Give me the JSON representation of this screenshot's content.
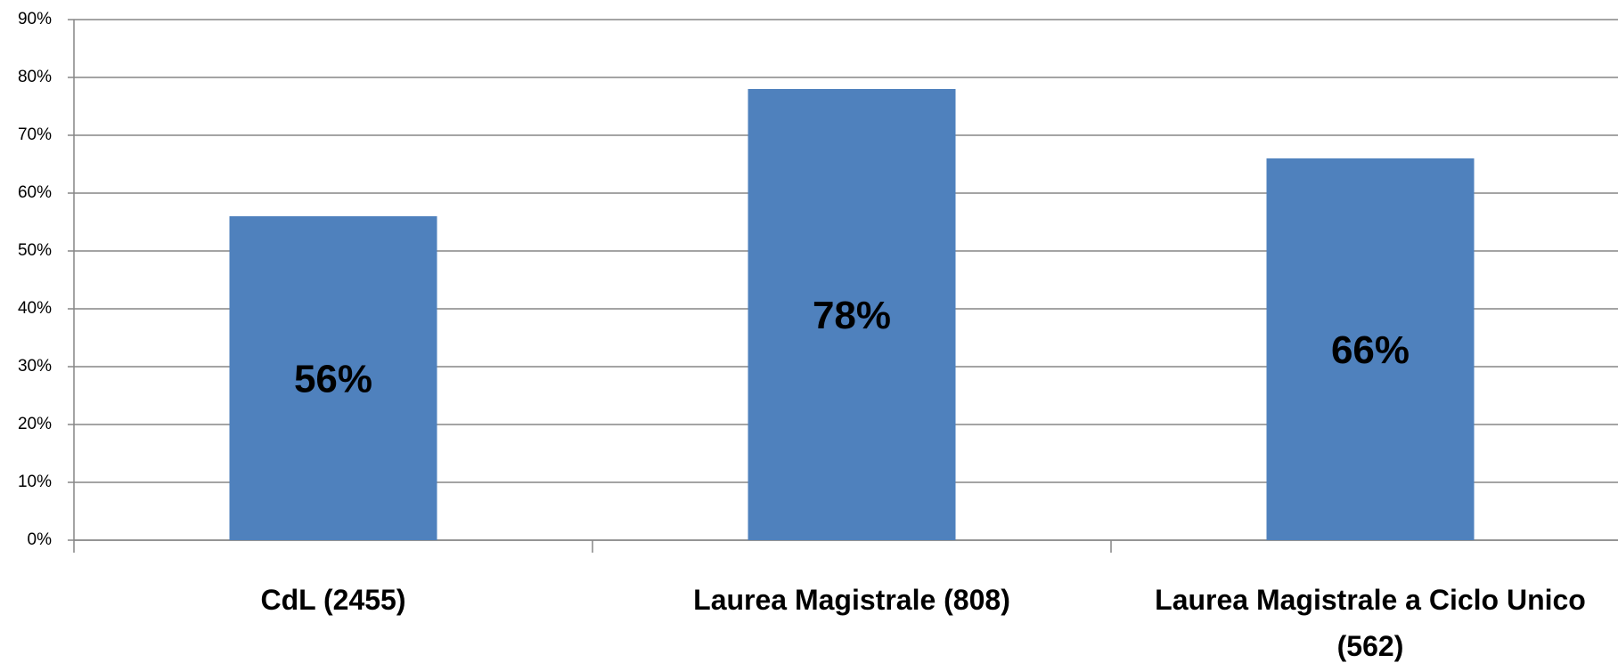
{
  "chart_data": {
    "type": "bar",
    "categories": [
      "CdL (2455)",
      "Laurea Magistrale (808)",
      "Laurea Magistrale a Ciclo Unico (562)"
    ],
    "values": [
      56,
      78,
      66
    ],
    "value_labels": [
      "56%",
      "78%",
      "66%"
    ],
    "color": "#4f81bd",
    "ylim": [
      0,
      90
    ],
    "yticks": [
      {
        "value": 0,
        "label": "0%"
      },
      {
        "value": 10,
        "label": "10%"
      },
      {
        "value": 20,
        "label": "20%"
      },
      {
        "value": 30,
        "label": "30%"
      },
      {
        "value": 40,
        "label": "40%"
      },
      {
        "value": 50,
        "label": "50%"
      },
      {
        "value": 60,
        "label": "60%"
      },
      {
        "value": 70,
        "label": "70%"
      },
      {
        "value": 80,
        "label": "80%"
      },
      {
        "value": 90,
        "label": "90%"
      }
    ],
    "grid": true
  }
}
